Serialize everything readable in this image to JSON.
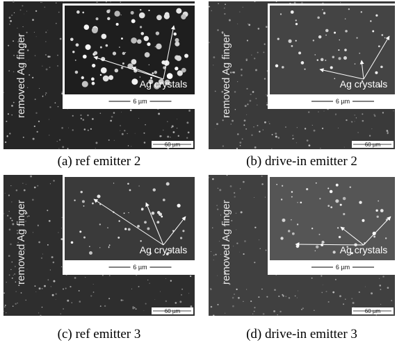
{
  "panels": [
    {
      "side_label": "removed Ag finger",
      "inset_label": "Ag crystals",
      "inset_scale": "6 µm",
      "scale": "60 µm",
      "caption": "(a) ref emitter 2"
    },
    {
      "side_label": "removed Ag finger",
      "inset_label": "Ag crystals",
      "inset_scale": "6 µm",
      "scale": "60 µm",
      "caption": "(b) drive-in emitter 2"
    },
    {
      "side_label": "removed Ag finger",
      "inset_label": "Ag crystals",
      "inset_scale": "6 µm",
      "scale": "60 µm",
      "caption": "(c) ref emitter 3"
    },
    {
      "side_label": "removed Ag finger",
      "inset_label": "Ag crystals",
      "inset_scale": "6 µm",
      "scale": "60 µm",
      "caption": "(d) drive-in emitter 3"
    }
  ]
}
